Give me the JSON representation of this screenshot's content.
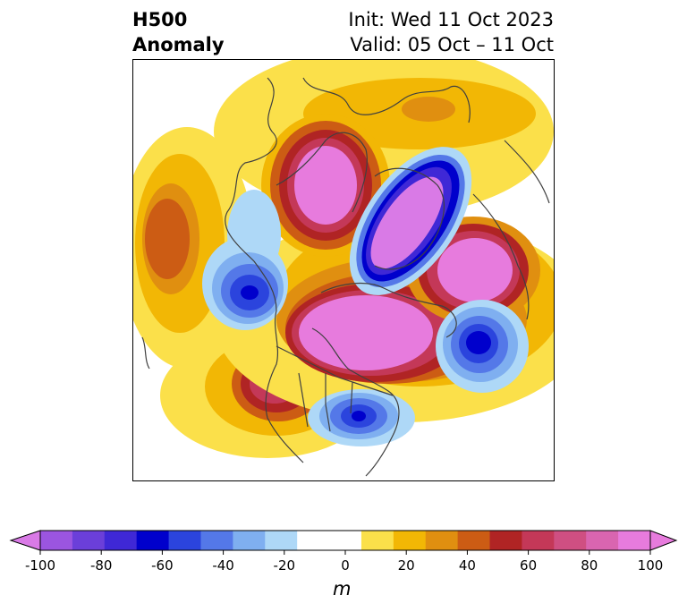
{
  "header": {
    "title_line1": "H500",
    "title_line2": "Anomaly",
    "init_text": "Init: Wed 11 Oct 2023",
    "valid_text": "Valid: 05 Oct – 11 Oct"
  },
  "colorbar": {
    "unit": "m",
    "tick_labels": [
      "-100",
      "-80",
      "-60",
      "-40",
      "-20",
      "0",
      "20",
      "40",
      "60",
      "80",
      "100"
    ],
    "colors": [
      "#9b55e0",
      "#6b3fd9",
      "#3f28d6",
      "#0000cc",
      "#2b44dd",
      "#5478e8",
      "#7faff0",
      "#aed8f7",
      "#ffffff",
      "#ffffff",
      "#fbe04a",
      "#f2b705",
      "#e08f10",
      "#cc5c14",
      "#b02424",
      "#c43858",
      "#cf4f82",
      "#d965b0",
      "#e77bdd"
    ],
    "min_color": "#d97ae6",
    "max_color": "#e77bdd"
  },
  "map": {
    "colors": {
      "pos1": "#fbe04a",
      "pos2": "#f2b705",
      "pos3": "#e08f10",
      "pos4": "#cc5c14",
      "pos5": "#b02424",
      "pos6": "#c43858",
      "pos7": "#d965b0",
      "pos8": "#e77bdd",
      "neg1": "#aed8f7",
      "neg2": "#7faff0",
      "neg3": "#5478e8",
      "neg4": "#2b44dd",
      "neg5": "#0000cc",
      "neg6": "#3f28d6",
      "neg7": "#9b55e0",
      "neg8": "#d97ae6",
      "coast": "#404040"
    }
  }
}
